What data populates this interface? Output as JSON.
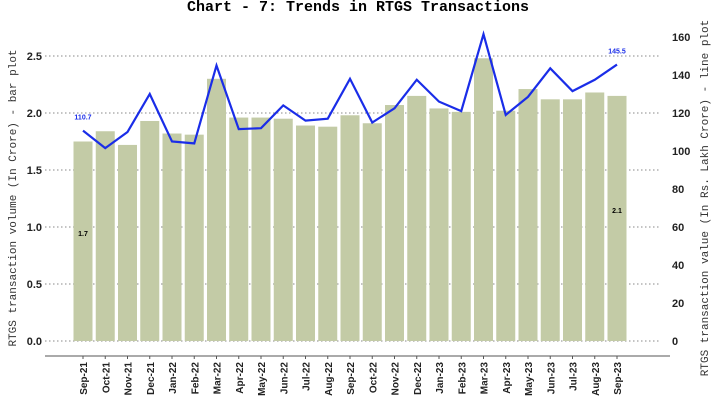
{
  "chart_data": {
    "type": "bar+line",
    "title": "Chart - 7: Trends in RTGS Transactions",
    "xlabel": "",
    "categories": [
      "Sep-21",
      "Oct-21",
      "Nov-21",
      "Dec-21",
      "Jan-22",
      "Feb-22",
      "Mar-22",
      "Apr-22",
      "May-22",
      "Jun-22",
      "Jul-22",
      "Aug-22",
      "Sep-22",
      "Oct-22",
      "Nov-22",
      "Dec-22",
      "Jan-23",
      "Feb-23",
      "Mar-23",
      "Apr-23",
      "May-23",
      "Jun-23",
      "Jul-23",
      "Aug-23",
      "Sep-23"
    ],
    "series": [
      {
        "name": "RTGS transaction volume (In Crore)",
        "type": "bar",
        "axis": "left",
        "color": "#c3cba6",
        "values": [
          1.75,
          1.84,
          1.72,
          1.93,
          1.82,
          1.81,
          2.3,
          1.96,
          1.96,
          1.95,
          1.89,
          1.88,
          1.98,
          1.91,
          2.07,
          2.15,
          2.04,
          2.01,
          2.48,
          2.02,
          2.21,
          2.12,
          2.12,
          2.18,
          2.15
        ]
      },
      {
        "name": "RTGS transaction value (In Rs. Lakh Crore)",
        "type": "line",
        "axis": "right",
        "color": "#1a2de8",
        "values": [
          110.7,
          101.5,
          110,
          130,
          105,
          104,
          145,
          111.5,
          112,
          124,
          116,
          117,
          138,
          115,
          122.5,
          137.5,
          126,
          121,
          161.5,
          119,
          128.5,
          143.5,
          131.5,
          137.5,
          145.5
        ]
      }
    ],
    "y_left": {
      "label": "RTGS transaction volume (In Crore) - bar plot",
      "ticks": [
        "0.0",
        "0.5",
        "1.0",
        "1.5",
        "2.0",
        "2.5"
      ],
      "ylim": [
        0,
        2.6
      ]
    },
    "y_right": {
      "label": "RTGS transaction value (In Rs. Lakh Crore) - line plot",
      "ticks": [
        "0",
        "20",
        "40",
        "60",
        "80",
        "100",
        "120",
        "140",
        "160"
      ],
      "ylim": [
        0,
        166
      ]
    },
    "annotations": [
      {
        "text": "110.7",
        "series": "line",
        "category": "Sep-21",
        "color": "#1a2de8"
      },
      {
        "text": "145.5",
        "series": "line",
        "category": "Sep-23",
        "color": "#1a2de8"
      },
      {
        "text": "1.7",
        "series": "bar",
        "category": "Sep-21",
        "color": "#000000"
      },
      {
        "text": "2.1",
        "series": "bar",
        "category": "Sep-23",
        "color": "#000000"
      }
    ],
    "grid": "horizontal dotted",
    "legend": "none"
  }
}
